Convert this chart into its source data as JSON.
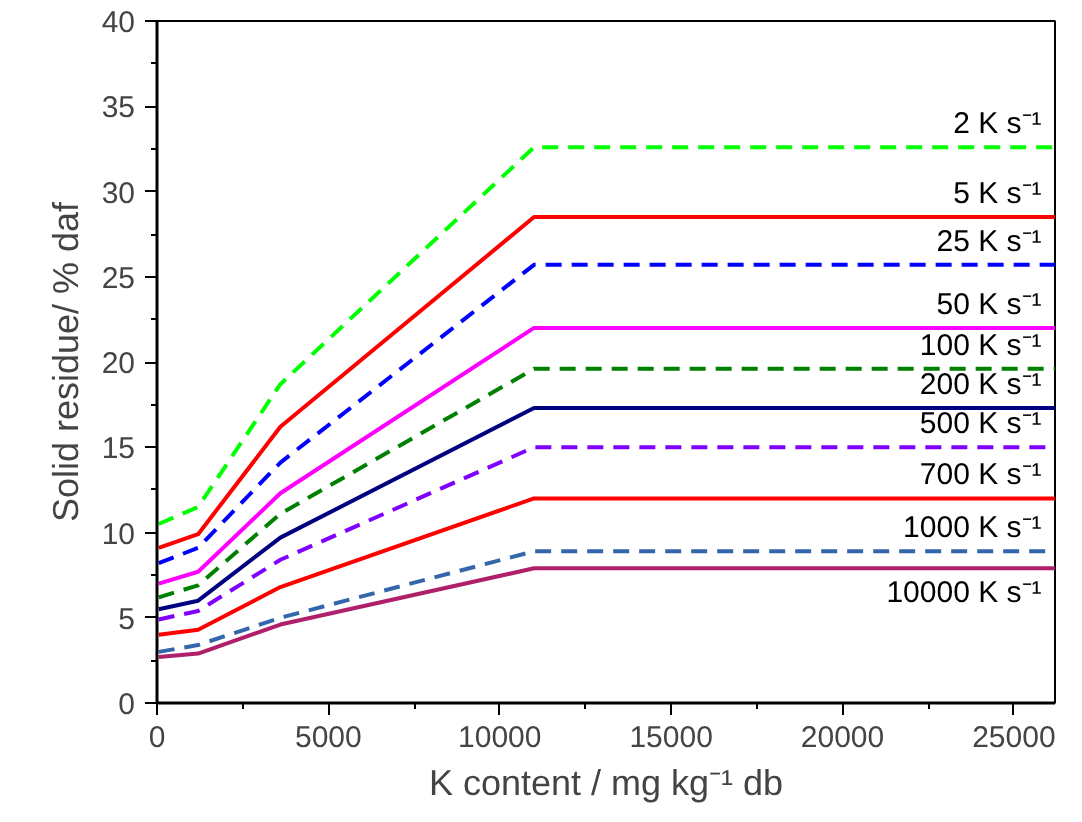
{
  "chart_data": {
    "type": "line",
    "xlabel": "K content / mg kg⁻¹ db",
    "ylabel": "Solid residue/ % daf",
    "x": [
      50,
      1200,
      3600,
      11000,
      26200
    ],
    "xlim": [
      0,
      26200
    ],
    "ylim": [
      0,
      40
    ],
    "xticks": [
      0,
      5000,
      10000,
      15000,
      20000,
      25000
    ],
    "yticks": [
      0,
      5,
      10,
      15,
      20,
      25,
      30,
      35,
      40
    ],
    "grid": false,
    "legend": false,
    "marker": "none",
    "series": [
      {
        "name": "2 K s⁻¹",
        "color": "#00ff00",
        "line_style": "dashed",
        "values": [
          10.5,
          11.5,
          18.7,
          32.6,
          32.6
        ]
      },
      {
        "name": "5 K s⁻¹",
        "color": "#ff0000",
        "line_style": "solid",
        "values": [
          9.1,
          9.9,
          16.2,
          28.5,
          28.5
        ]
      },
      {
        "name": "25 K s⁻¹",
        "color": "#0000ff",
        "line_style": "dashed",
        "values": [
          8.2,
          9.1,
          14.1,
          25.7,
          25.7
        ]
      },
      {
        "name": "50 K s⁻¹",
        "color": "#ff00ff",
        "line_style": "solid",
        "values": [
          7.0,
          7.7,
          12.3,
          22.0,
          22.0
        ]
      },
      {
        "name": "100 K s⁻¹",
        "color": "#008000",
        "line_style": "dashed",
        "values": [
          6.2,
          6.9,
          11.1,
          19.6,
          19.6
        ]
      },
      {
        "name": "200 K s⁻¹",
        "color": "#000080",
        "line_style": "solid",
        "values": [
          5.5,
          6.0,
          9.7,
          17.3,
          17.3
        ]
      },
      {
        "name": "500 K s⁻¹",
        "color": "#8000ff",
        "line_style": "dashed",
        "values": [
          4.9,
          5.4,
          8.4,
          15.0,
          15.0
        ]
      },
      {
        "name": "700 K s⁻¹",
        "color": "#ff0000",
        "line_style": "solid",
        "values": [
          4.0,
          4.3,
          6.8,
          12.0,
          12.0
        ]
      },
      {
        "name": "1000 K s⁻¹",
        "color": "#3366aa",
        "line_style": "dashed",
        "values": [
          3.0,
          3.4,
          5.0,
          8.9,
          8.9
        ]
      },
      {
        "name": "10000 K s⁻¹",
        "color": "#b0206a",
        "line_style": "solid",
        "values": [
          2.7,
          2.9,
          4.6,
          7.9,
          7.9
        ]
      }
    ]
  }
}
